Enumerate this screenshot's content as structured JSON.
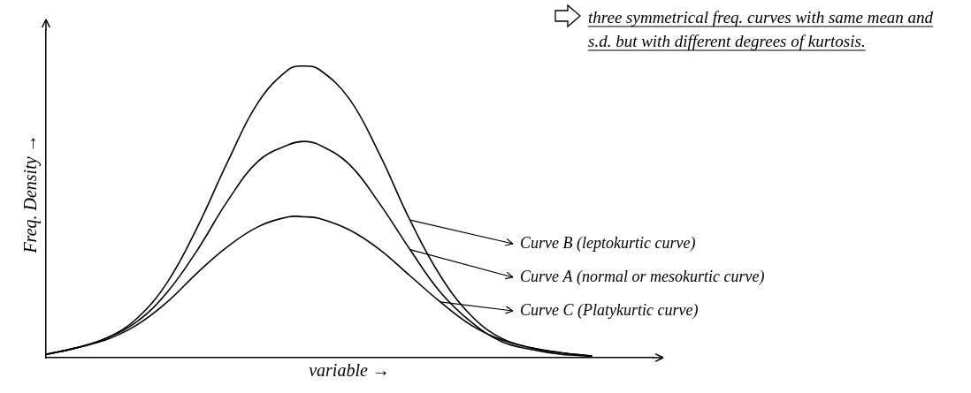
{
  "chart_data": {
    "type": "line",
    "annotation": "three symmetrical freq. curves with same mean and s.d. but with different degrees of kurtosis.",
    "x_label": "variable →",
    "y_label": "Freq. Density →",
    "x": [
      0,
      0.5,
      1,
      1.5,
      2,
      2.5,
      3,
      3.5,
      4,
      4.25,
      4.5,
      5,
      5.5,
      6,
      6.5,
      7,
      7.5,
      8,
      8.5,
      9
    ],
    "series": [
      {
        "name": "Curve B (leptokurtic curve)",
        "color": "#000000",
        "values": [
          0.1,
          0.3,
          0.6,
          1.2,
          2.3,
          4.0,
          6.0,
          7.8,
          8.8,
          8.9,
          8.8,
          7.9,
          6.2,
          4.2,
          2.5,
          1.3,
          0.6,
          0.3,
          0.15,
          0.05
        ]
      },
      {
        "name": "Curve A (normal or mesokurtic curve)",
        "color": "#000000",
        "values": [
          0.1,
          0.3,
          0.6,
          1.1,
          2.0,
          3.3,
          4.8,
          6.0,
          6.5,
          6.6,
          6.5,
          5.9,
          4.7,
          3.3,
          2.0,
          1.1,
          0.5,
          0.25,
          0.1,
          0.05
        ]
      },
      {
        "name": "Curve C (Platykurtic curve)",
        "color": "#000000",
        "values": [
          0.1,
          0.3,
          0.55,
          1.0,
          1.7,
          2.6,
          3.4,
          4.0,
          4.3,
          4.3,
          4.25,
          3.9,
          3.3,
          2.5,
          1.7,
          1.0,
          0.55,
          0.3,
          0.15,
          0.05
        ]
      }
    ],
    "xlim": [
      0,
      10
    ],
    "ylim": [
      0,
      10
    ],
    "grid": false,
    "tick_labels": false,
    "marker": "none",
    "line_style": "solid"
  }
}
